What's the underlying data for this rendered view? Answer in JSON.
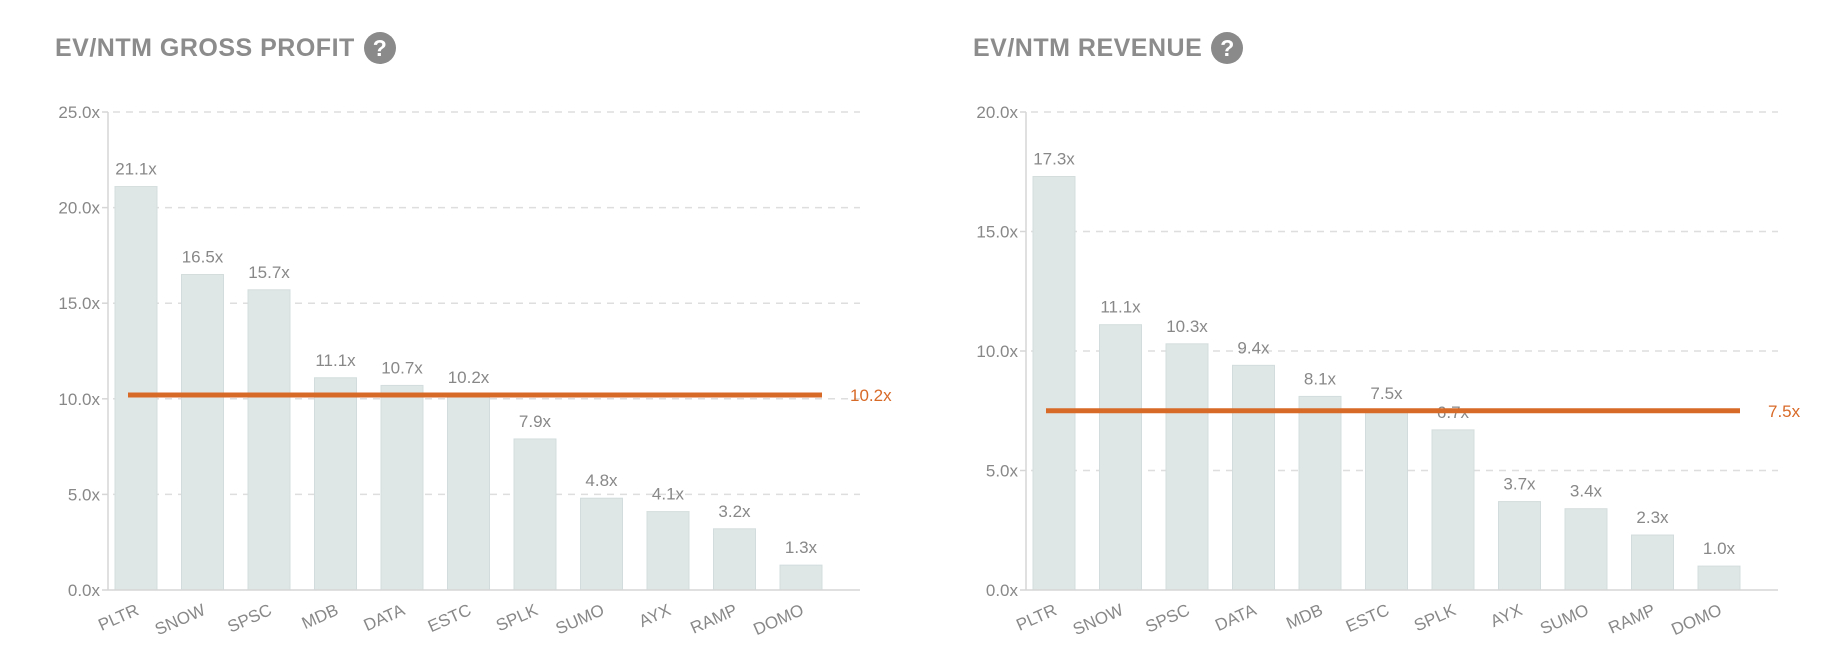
{
  "colors": {
    "bar": "#dfe6e6",
    "bar_stroke": "#d3dcdc",
    "axis": "#d6d6d6",
    "grid": "#dedede",
    "reference_line": "#d86a28",
    "text": "#888888",
    "title": "#8c8c8c"
  },
  "help_icon": "question-circle-icon",
  "chart_data": [
    {
      "type": "bar",
      "title": "EV/NTM GROSS PROFIT",
      "categories": [
        "PLTR",
        "SNOW",
        "SPSC",
        "MDB",
        "DATA",
        "ESTC",
        "SPLK",
        "SUMO",
        "AYX",
        "RAMP",
        "DOMO"
      ],
      "values": [
        21.1,
        16.5,
        15.7,
        11.1,
        10.7,
        10.2,
        7.9,
        4.8,
        4.1,
        3.2,
        1.3
      ],
      "data_labels": [
        "21.1x",
        "16.5x",
        "15.7x",
        "11.1x",
        "10.7x",
        "10.2x",
        "7.9x",
        "4.8x",
        "4.1x",
        "3.2x",
        "1.3x"
      ],
      "ylim": [
        0,
        25
      ],
      "yticks": [
        0,
        5,
        10,
        15,
        20,
        25
      ],
      "ytick_labels": [
        "0.0x",
        "5.0x",
        "10.0x",
        "15.0x",
        "20.0x",
        "25.0x"
      ],
      "xlabel": "",
      "ylabel": "",
      "grid": true,
      "reference_line": {
        "value": 10.2,
        "label": "10.2x"
      }
    },
    {
      "type": "bar",
      "title": "EV/NTM REVENUE",
      "categories": [
        "PLTR",
        "SNOW",
        "SPSC",
        "DATA",
        "MDB",
        "ESTC",
        "SPLK",
        "AYX",
        "SUMO",
        "RAMP",
        "DOMO"
      ],
      "values": [
        17.3,
        11.1,
        10.3,
        9.4,
        8.1,
        7.5,
        6.7,
        3.7,
        3.4,
        2.3,
        1.0
      ],
      "data_labels": [
        "17.3x",
        "11.1x",
        "10.3x",
        "9.4x",
        "8.1x",
        "7.5x",
        "6.7x",
        "3.7x",
        "3.4x",
        "2.3x",
        "1.0x"
      ],
      "ylim": [
        0,
        20
      ],
      "yticks": [
        0,
        5,
        10,
        15,
        20
      ],
      "ytick_labels": [
        "0.0x",
        "5.0x",
        "10.0x",
        "15.0x",
        "20.0x"
      ],
      "xlabel": "",
      "ylabel": "",
      "grid": true,
      "reference_line": {
        "value": 7.5,
        "label": "7.5x"
      }
    }
  ]
}
